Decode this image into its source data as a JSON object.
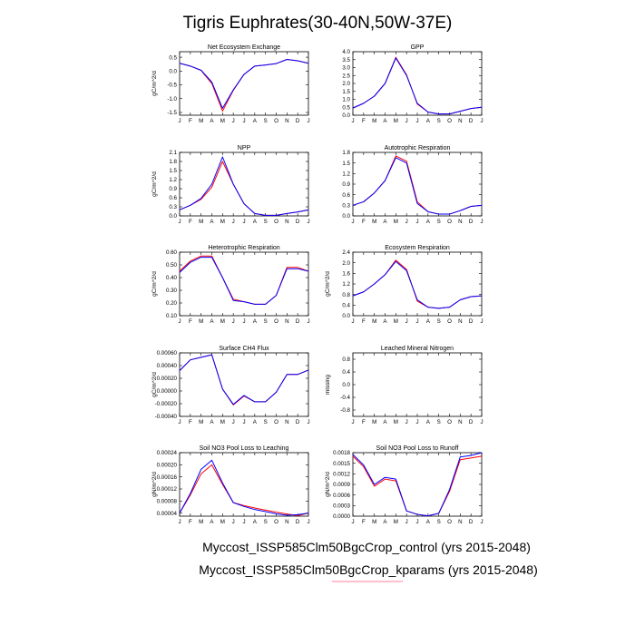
{
  "figure": {
    "title": "Tigris Euphrates(30-40N,50W-37E)",
    "legend": [
      "Myccost_ISSP585Clm50BgcCrop_control (yrs 2015-2048)",
      "Myccost_ISSP585Clm50BgcCrop_kparams (yrs 2015-2048)"
    ]
  },
  "colors": {
    "control": "#ff0000",
    "kparams": "#0000ff",
    "legend_underline": "#ff7f9f"
  },
  "chart_data": [
    {
      "type": "line",
      "title": "Net Ecosystem Exchange",
      "ylabel": "gC/m^2/d",
      "x": [
        "J",
        "F",
        "M",
        "A",
        "M",
        "J",
        "J",
        "A",
        "S",
        "O",
        "N",
        "D",
        "J"
      ],
      "ylim": [
        -1.6,
        0.7
      ],
      "yticks": [
        0.5,
        0.0,
        -0.5,
        -1.0,
        -1.5
      ],
      "ytick_labels": [
        "0.5",
        "0.0",
        "-0.5",
        "-1.0",
        "-1.5"
      ],
      "series": [
        {
          "key": "control",
          "values": [
            0.28,
            0.18,
            0.02,
            -0.45,
            -1.45,
            -0.7,
            -0.12,
            0.18,
            0.22,
            0.27,
            0.42,
            0.37,
            0.28
          ]
        },
        {
          "key": "kparams",
          "values": [
            0.28,
            0.18,
            0.03,
            -0.4,
            -1.35,
            -0.68,
            -0.12,
            0.18,
            0.22,
            0.27,
            0.42,
            0.37,
            0.28
          ]
        }
      ]
    },
    {
      "type": "line",
      "title": "GPP",
      "ylabel": "",
      "x": [
        "J",
        "F",
        "M",
        "A",
        "M",
        "J",
        "J",
        "A",
        "S",
        "O",
        "N",
        "D",
        "J"
      ],
      "ylim": [
        0,
        4
      ],
      "yticks": [
        0,
        0.5,
        1,
        1.5,
        2,
        2.5,
        3,
        3.5,
        4
      ],
      "ytick_labels": [
        "0.0",
        "0.5",
        "1.0",
        "1.5",
        "2.0",
        "2.5",
        "3.0",
        "3.5",
        "4.0"
      ],
      "series": [
        {
          "key": "control",
          "values": [
            0.45,
            0.75,
            1.2,
            2.0,
            3.65,
            2.55,
            0.7,
            0.2,
            0.08,
            0.08,
            0.25,
            0.42,
            0.5
          ]
        },
        {
          "key": "kparams",
          "values": [
            0.45,
            0.75,
            1.2,
            2.0,
            3.6,
            2.5,
            0.75,
            0.2,
            0.08,
            0.08,
            0.25,
            0.42,
            0.5
          ]
        }
      ]
    },
    {
      "type": "line",
      "title": "NPP",
      "ylabel": "gC/m^2/d",
      "x": [
        "J",
        "F",
        "M",
        "A",
        "M",
        "J",
        "J",
        "A",
        "S",
        "O",
        "N",
        "D",
        "J"
      ],
      "ylim": [
        0,
        2.1
      ],
      "yticks": [
        0,
        0.3,
        0.6,
        0.9,
        1.2,
        1.5,
        1.8,
        2.1
      ],
      "ytick_labels": [
        "0.0",
        "0.3",
        "0.6",
        "0.9",
        "1.2",
        "1.5",
        "1.8",
        "2.1"
      ],
      "series": [
        {
          "key": "control",
          "values": [
            0.2,
            0.35,
            0.55,
            0.95,
            1.8,
            1.05,
            0.4,
            0.08,
            0.02,
            0.02,
            0.08,
            0.13,
            0.2
          ]
        },
        {
          "key": "kparams",
          "values": [
            0.2,
            0.35,
            0.58,
            1.05,
            1.95,
            1.05,
            0.4,
            0.08,
            0.02,
            0.02,
            0.08,
            0.13,
            0.2
          ]
        }
      ]
    },
    {
      "type": "line",
      "title": "Autotrophic Respiration",
      "ylabel": "",
      "x": [
        "J",
        "F",
        "M",
        "A",
        "M",
        "J",
        "J",
        "A",
        "S",
        "O",
        "N",
        "D",
        "J"
      ],
      "ylim": [
        0,
        1.8
      ],
      "yticks": [
        0,
        0.3,
        0.6,
        0.9,
        1.2,
        1.5,
        1.8
      ],
      "ytick_labels": [
        "0.0",
        "0.3",
        "0.6",
        "0.9",
        "1.2",
        "1.5",
        "1.8"
      ],
      "series": [
        {
          "key": "control",
          "values": [
            0.3,
            0.4,
            0.65,
            1.0,
            1.7,
            1.55,
            0.4,
            0.12,
            0.05,
            0.05,
            0.15,
            0.27,
            0.3
          ]
        },
        {
          "key": "kparams",
          "values": [
            0.3,
            0.4,
            0.65,
            1.0,
            1.65,
            1.5,
            0.35,
            0.12,
            0.05,
            0.05,
            0.15,
            0.27,
            0.3
          ]
        }
      ]
    },
    {
      "type": "line",
      "title": "Heterotrophic Respiration",
      "ylabel": "gC/m^2/d",
      "x": [
        "J",
        "F",
        "M",
        "A",
        "M",
        "J",
        "J",
        "A",
        "S",
        "O",
        "N",
        "D",
        "J"
      ],
      "ylim": [
        0.1,
        0.6
      ],
      "yticks": [
        0.1,
        0.2,
        0.3,
        0.4,
        0.5,
        0.6
      ],
      "ytick_labels": [
        "0.10",
        "0.20",
        "0.30",
        "0.40",
        "0.50",
        "0.60"
      ],
      "series": [
        {
          "key": "control",
          "values": [
            0.45,
            0.53,
            0.57,
            0.57,
            0.4,
            0.23,
            0.21,
            0.19,
            0.19,
            0.26,
            0.48,
            0.48,
            0.45
          ]
        },
        {
          "key": "kparams",
          "values": [
            0.44,
            0.52,
            0.56,
            0.56,
            0.4,
            0.22,
            0.21,
            0.19,
            0.19,
            0.26,
            0.47,
            0.47,
            0.45
          ]
        }
      ]
    },
    {
      "type": "line",
      "title": "Ecosystem Respiration",
      "ylabel": "gC/m^2/d",
      "x": [
        "J",
        "F",
        "M",
        "A",
        "M",
        "J",
        "J",
        "A",
        "S",
        "O",
        "N",
        "D",
        "J"
      ],
      "ylim": [
        0,
        2.4
      ],
      "yticks": [
        0,
        0.4,
        0.8,
        1.2,
        1.6,
        2.0,
        2.4
      ],
      "ytick_labels": [
        "0.0",
        "0.4",
        "0.8",
        "1.2",
        "1.6",
        "2.0",
        "2.4"
      ],
      "series": [
        {
          "key": "control",
          "values": [
            0.75,
            0.9,
            1.2,
            1.55,
            2.1,
            1.75,
            0.55,
            0.32,
            0.28,
            0.32,
            0.6,
            0.72,
            0.75
          ]
        },
        {
          "key": "kparams",
          "values": [
            0.75,
            0.9,
            1.2,
            1.55,
            2.05,
            1.7,
            0.6,
            0.32,
            0.28,
            0.32,
            0.6,
            0.72,
            0.75
          ]
        }
      ]
    },
    {
      "type": "line",
      "title": "Surface CH4 Flux",
      "ylabel": "gC/m^2/d",
      "x": [
        "J",
        "F",
        "M",
        "A",
        "M",
        "J",
        "J",
        "A",
        "S",
        "O",
        "N",
        "D",
        "J"
      ],
      "ylim": [
        -0.0004,
        0.0006
      ],
      "yticks": [
        -0.0004,
        -0.0002,
        0,
        0.0002,
        0.0004,
        0.0006
      ],
      "ytick_labels": [
        "-0.00040",
        "-0.00020",
        "0.00000",
        "0.00020",
        "0.00040",
        "0.00060"
      ],
      "series": [
        {
          "key": "control",
          "values": [
            0.00032,
            0.00049,
            0.00053,
            0.00057,
            3e-05,
            -0.00022,
            -8e-05,
            -0.00017,
            -0.00017,
            -2e-05,
            0.00026,
            0.00026,
            0.00033
          ]
        },
        {
          "key": "kparams",
          "values": [
            0.00032,
            0.00049,
            0.00053,
            0.00057,
            3e-05,
            -0.00021,
            -7e-05,
            -0.00017,
            -0.00017,
            -2e-05,
            0.00026,
            0.00026,
            0.00033
          ]
        }
      ]
    },
    {
      "type": "line",
      "title": "Leached Mineral Nitrogen",
      "ylabel": "missing",
      "x": [
        "J",
        "F",
        "M",
        "A",
        "M",
        "J",
        "J",
        "A",
        "S",
        "O",
        "N",
        "D",
        "J"
      ],
      "ylim": [
        -1,
        1
      ],
      "yticks": [
        -0.8,
        -0.4,
        0,
        0.4,
        0.8
      ],
      "ytick_labels": [
        "-0.8",
        "-0.4",
        "0.0",
        "0.4",
        "0.8"
      ],
      "series": []
    },
    {
      "type": "line",
      "title": "Soil NO3 Pool Loss to Leaching",
      "ylabel": "gN/m^2/d",
      "x": [
        "J",
        "F",
        "M",
        "A",
        "M",
        "J",
        "J",
        "A",
        "S",
        "O",
        "N",
        "D",
        "J"
      ],
      "ylim": [
        3e-05,
        0.00024
      ],
      "yticks": [
        4e-05,
        8e-05,
        0.00012,
        0.00016,
        0.0002,
        0.00024
      ],
      "ytick_labels": [
        "0.00004",
        "0.00008",
        "0.00012",
        "0.00016",
        "0.00020",
        "0.00024"
      ],
      "series": [
        {
          "key": "control",
          "values": [
            4e-05,
            0.0001,
            0.00017,
            0.0002,
            0.000135,
            7.5e-05,
            6.5e-05,
            5.7e-05,
            5e-05,
            4.3e-05,
            3.7e-05,
            3.2e-05,
            4e-05
          ]
        },
        {
          "key": "kparams",
          "values": [
            4e-05,
            0.000105,
            0.000185,
            0.000215,
            0.00014,
            7.5e-05,
            6.2e-05,
            5.2e-05,
            4.5e-05,
            3.8e-05,
            3.3e-05,
            3.5e-05,
            4e-05
          ]
        }
      ]
    },
    {
      "type": "line",
      "title": "Soil NO3 Pool Loss to Runoff",
      "ylabel": "gN/m^2/d",
      "x": [
        "J",
        "F",
        "M",
        "A",
        "M",
        "J",
        "J",
        "A",
        "S",
        "O",
        "N",
        "D",
        "J"
      ],
      "ylim": [
        0,
        0.0018
      ],
      "yticks": [
        0,
        0.0003,
        0.0006,
        0.0009,
        0.0012,
        0.0015,
        0.0018
      ],
      "ytick_labels": [
        "0.0000",
        "0.0003",
        "0.0006",
        "0.0009",
        "0.0012",
        "0.0015",
        "0.0018"
      ],
      "series": [
        {
          "key": "control",
          "values": [
            0.0017,
            0.0014,
            0.00085,
            0.00105,
            0.001,
            0.00015,
            5e-05,
            1e-05,
            8e-05,
            0.0007,
            0.0016,
            0.00165,
            0.0017
          ]
        },
        {
          "key": "kparams",
          "values": [
            0.00175,
            0.00145,
            0.0009,
            0.0011,
            0.00105,
            0.00015,
            5e-05,
            1e-05,
            8e-05,
            0.00075,
            0.00168,
            0.00172,
            0.0018
          ]
        }
      ]
    }
  ]
}
